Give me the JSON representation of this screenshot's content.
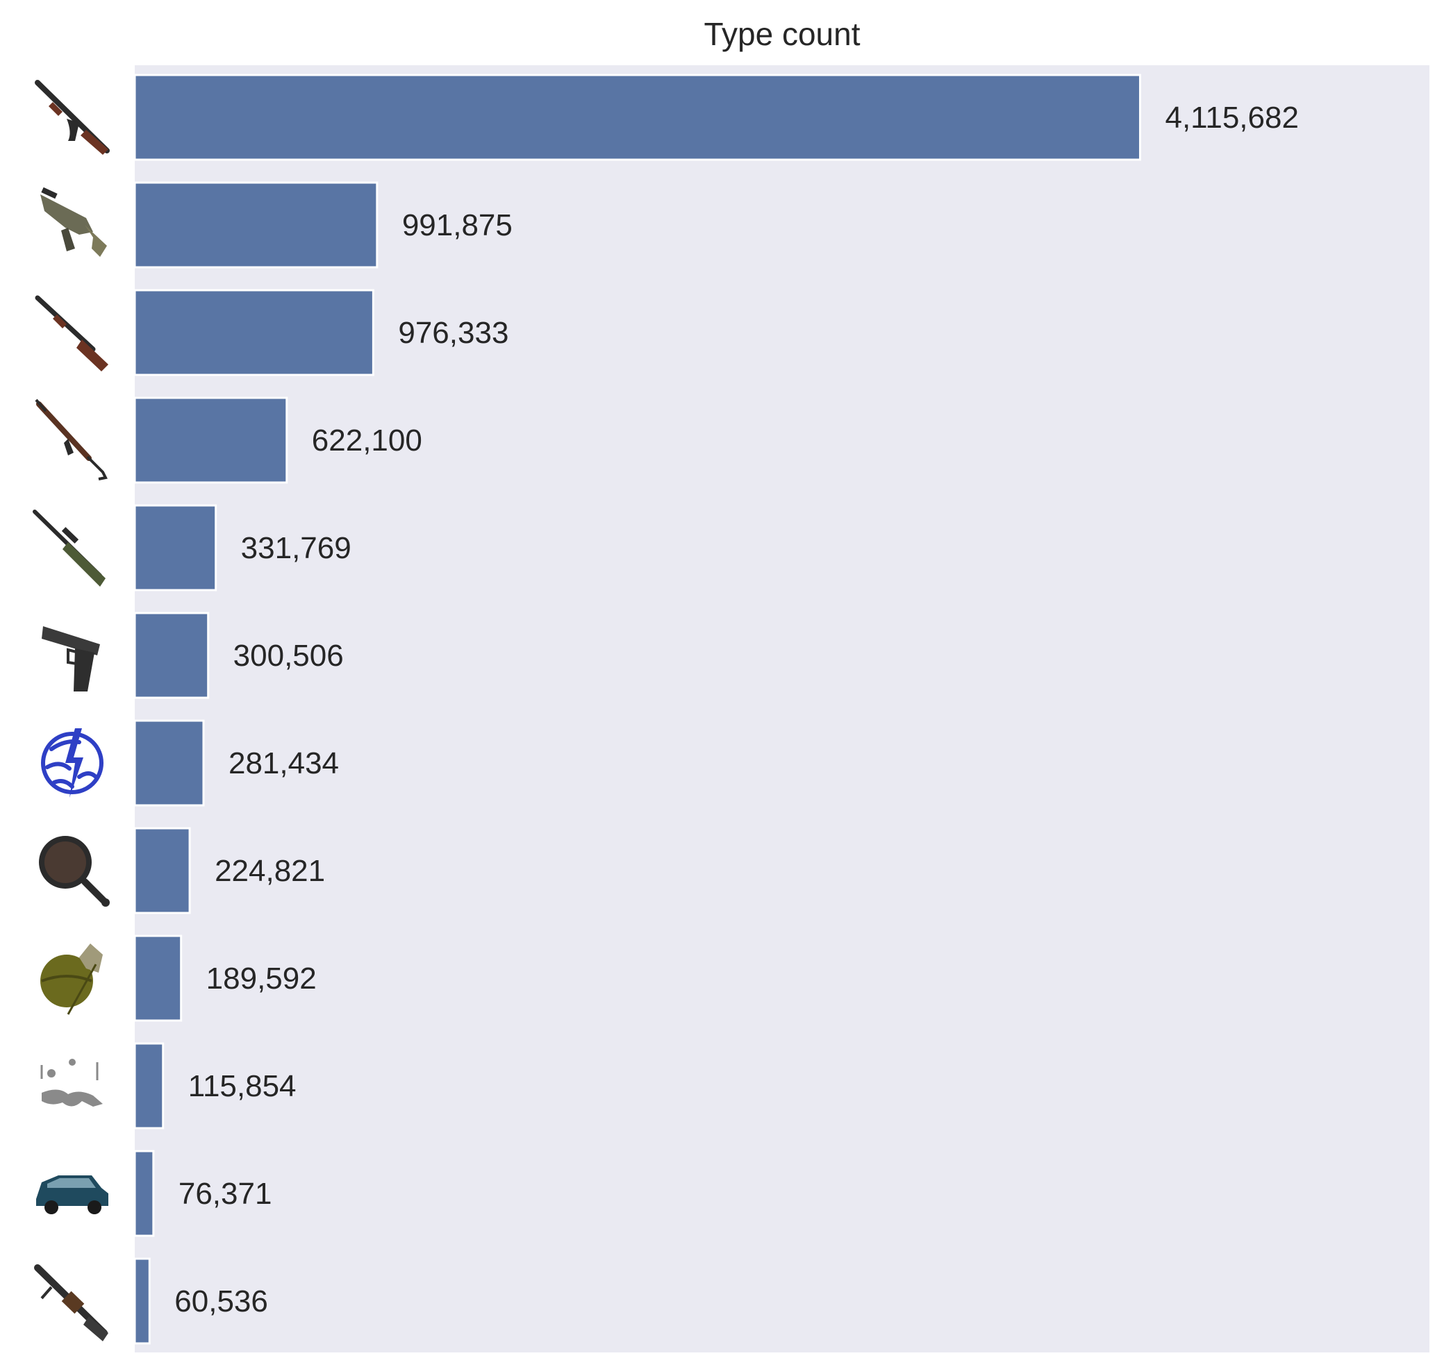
{
  "colors": {
    "plot_background": "#eaeaf2",
    "bar": "#5975a4",
    "bar_edge": "#ffffff",
    "text": "#262626"
  },
  "chart_data": {
    "type": "bar",
    "orientation": "horizontal",
    "title": "Type count",
    "xlabel": "",
    "ylabel": "",
    "xlim": [
      0,
      5300000
    ],
    "grid": false,
    "categories": [
      {
        "icon": "assault-rifle-icon",
        "value": 4115682,
        "label": "4,115,682"
      },
      {
        "icon": "smg-icon",
        "value": 991875,
        "label": "991,875"
      },
      {
        "icon": "shotgun-icon",
        "value": 976333,
        "label": "976,333"
      },
      {
        "icon": "dmr-rifle-icon",
        "value": 622100,
        "label": "622,100"
      },
      {
        "icon": "sniper-rifle-icon",
        "value": 331769,
        "label": "331,769"
      },
      {
        "icon": "pistol-icon",
        "value": 300506,
        "label": "300,506"
      },
      {
        "icon": "bluezone-icon",
        "value": 281434,
        "label": "281,434"
      },
      {
        "icon": "frying-pan-icon",
        "value": 224821,
        "label": "224,821"
      },
      {
        "icon": "grenade-icon",
        "value": 189592,
        "label": "189,592"
      },
      {
        "icon": "fall-damage-icon",
        "value": 115854,
        "label": "115,854"
      },
      {
        "icon": "vehicle-icon",
        "value": 76371,
        "label": "76,371"
      },
      {
        "icon": "light-machine-gun-icon",
        "value": 60536,
        "label": "60,536"
      }
    ]
  }
}
